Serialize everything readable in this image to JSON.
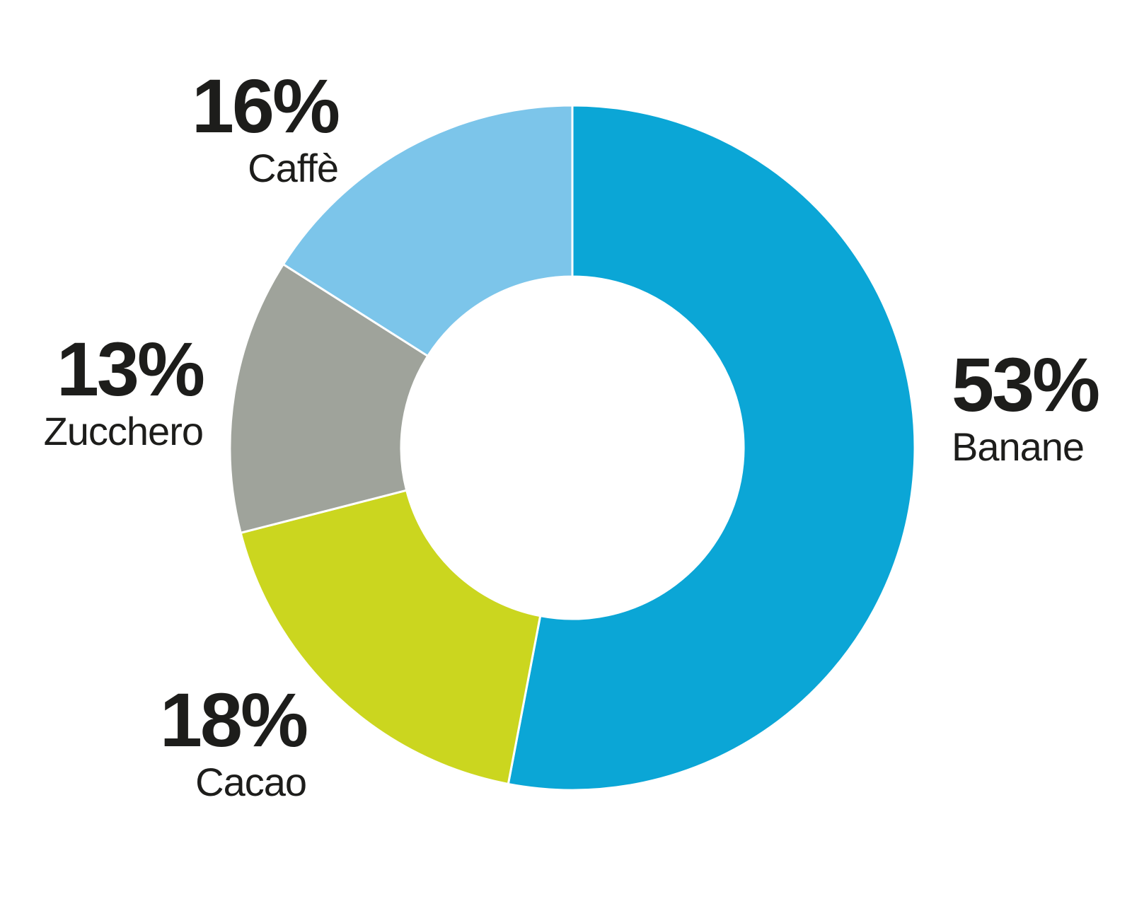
{
  "page": {
    "background_color": "#ffffff",
    "text_color": "#1d1d1b"
  },
  "chart_data": {
    "type": "pie",
    "variant": "donut",
    "title": "",
    "direction": "clockwise",
    "start_angle": "top",
    "inner_radius_ratio": 0.5,
    "separator_color": "#ffffff",
    "legend_position": "callouts-around-ring",
    "slices": [
      {
        "label": "Banane",
        "value": 53,
        "pct_label": "53%",
        "color": "#0ba6d6",
        "callout_side": "right"
      },
      {
        "label": "Cacao",
        "value": 18,
        "pct_label": "18%",
        "color": "#cbd61f",
        "callout_side": "left"
      },
      {
        "label": "Zucchero",
        "value": 13,
        "pct_label": "13%",
        "color": "#9fa39b",
        "callout_side": "left"
      },
      {
        "label": "Caffè",
        "value": 16,
        "pct_label": "16%",
        "color": "#7cc5ea",
        "callout_side": "left"
      }
    ]
  }
}
